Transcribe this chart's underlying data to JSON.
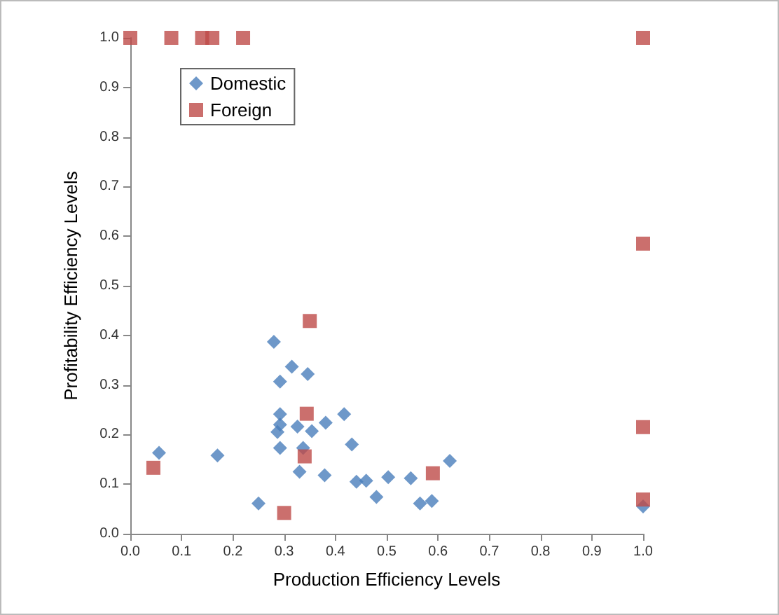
{
  "chart_data": {
    "type": "scatter",
    "xlabel": "Production Efficiency Levels",
    "ylabel": "Profitability Efficiency Levels",
    "xlim": [
      0,
      1
    ],
    "ylim": [
      0,
      1
    ],
    "xticks": [
      {
        "value": 0,
        "label": "0.0"
      },
      {
        "value": 0.1,
        "label": "0.1"
      },
      {
        "value": 0.2,
        "label": "0.2"
      },
      {
        "value": 0.3,
        "label": "0.3"
      },
      {
        "value": 0.4,
        "label": "0.4"
      },
      {
        "value": 0.5,
        "label": "0.5"
      },
      {
        "value": 0.6,
        "label": "0.6"
      },
      {
        "value": 0.7,
        "label": "0.7"
      },
      {
        "value": 0.8,
        "label": "0.8"
      },
      {
        "value": 0.9,
        "label": "0.9"
      },
      {
        "value": 1,
        "label": "1.0"
      }
    ],
    "yticks": [
      {
        "value": 0,
        "label": "0.0"
      },
      {
        "value": 0.1,
        "label": "0.1"
      },
      {
        "value": 0.2,
        "label": "0.2"
      },
      {
        "value": 0.3,
        "label": "0.3"
      },
      {
        "value": 0.4,
        "label": "0.4"
      },
      {
        "value": 0.5,
        "label": "0.5"
      },
      {
        "value": 0.6,
        "label": "0.6"
      },
      {
        "value": 0.7,
        "label": "0.7"
      },
      {
        "value": 0.8,
        "label": "0.8"
      },
      {
        "value": 0.9,
        "label": "0.9"
      },
      {
        "value": 1,
        "label": "1.0"
      }
    ],
    "grid": false,
    "legend": "top left",
    "series": [
      {
        "name": "Domestic",
        "color": "#4a7ebb",
        "marker": "diamond",
        "x": [
          0.056,
          0.17,
          0.25,
          0.28,
          0.292,
          0.315,
          0.346,
          0.292,
          0.292,
          0.287,
          0.292,
          0.326,
          0.354,
          0.337,
          0.33,
          0.381,
          0.417,
          0.432,
          0.379,
          0.441,
          0.46,
          0.48,
          0.503,
          0.547,
          0.565,
          0.588,
          0.623,
          1.0
        ],
        "values": [
          0.163,
          0.158,
          0.061,
          0.387,
          0.307,
          0.337,
          0.322,
          0.241,
          0.22,
          0.205,
          0.173,
          0.216,
          0.207,
          0.173,
          0.125,
          0.224,
          0.241,
          0.18,
          0.118,
          0.105,
          0.107,
          0.074,
          0.114,
          0.112,
          0.061,
          0.066,
          0.147,
          0.055
        ]
      },
      {
        "name": "Foreign",
        "color": "#be4b48",
        "marker": "square",
        "x": [
          0.0,
          0.08,
          0.14,
          0.16,
          0.22,
          1.0,
          0.045,
          0.35,
          0.344,
          0.34,
          0.3,
          0.59,
          1.0,
          1.0,
          1.0
        ],
        "values": [
          1.0,
          1.0,
          1.0,
          1.0,
          1.0,
          1.0,
          0.133,
          0.429,
          0.242,
          0.156,
          0.042,
          0.122,
          0.585,
          0.215,
          0.069
        ]
      }
    ]
  }
}
